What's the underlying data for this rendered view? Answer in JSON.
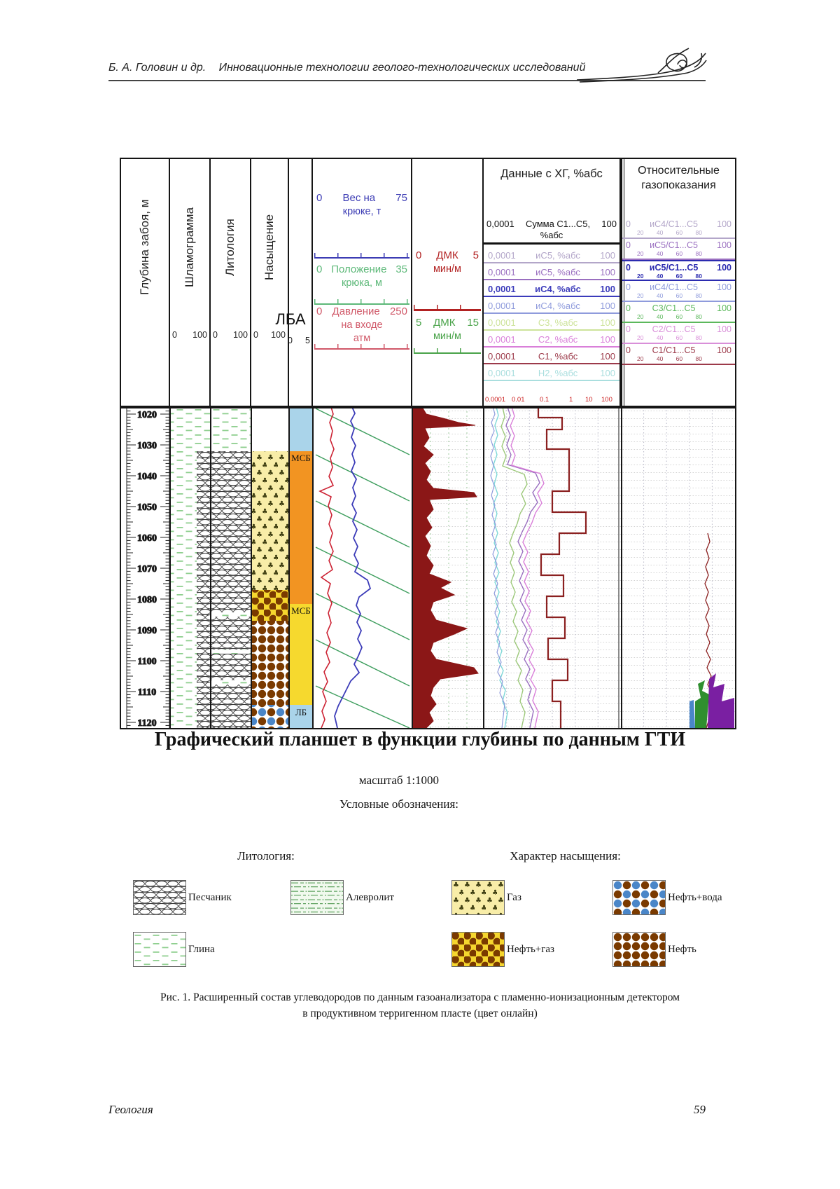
{
  "header": {
    "authors": "Б. А. Головин и др.",
    "title": "Инновационные технологии геолого-технологических исследований"
  },
  "colors": {
    "weight_blue": "#3c3cb4",
    "hookpos_green": "#5cb878",
    "pressure_pink": "#d05868",
    "dmk_red": "#b22222",
    "dmk_green": "#4aa34a",
    "lba_blue": "#aad4ea",
    "lba_orange": "#f29422",
    "lba_yellow": "#f6d92e",
    "purple_blob": "#7a1fa2",
    "green_blob": "#2f8f2f"
  },
  "log": {
    "tracks": {
      "depth": {
        "label": "Глубина забоя, м"
      },
      "shlam": {
        "label": "Шламограмма",
        "min": "0",
        "max": "100"
      },
      "lith": {
        "label": "Литология",
        "min": "0",
        "max": "100"
      },
      "satur": {
        "label": "Насыщение",
        "min": "0",
        "max": "100"
      },
      "lba": {
        "label": "ЛБА",
        "min": "0",
        "max": "5"
      }
    },
    "weight": {
      "rows": [
        {
          "min": "0",
          "label": "Вес на",
          "max": "75",
          "unit": "крюке, т",
          "color": "#3c3cb4"
        },
        {
          "min": "0",
          "label": "Положение",
          "max": "35",
          "unit": "крюка, м",
          "color": "#5cb878"
        },
        {
          "min": "0",
          "label": "Давление",
          "max": "250",
          "unit": "на входе",
          "unit2": "атм",
          "color": "#d05868"
        }
      ]
    },
    "dmk": {
      "rows": [
        {
          "min": "0",
          "label": "ДМК",
          "max": "5",
          "unit": "мин/м",
          "color": "#b22222"
        },
        {
          "min": "5",
          "label": "ДМК",
          "max": "15",
          "unit": "мин/м",
          "color": "#4aa34a"
        }
      ]
    },
    "hg": {
      "title": "Данные с ХГ, %абс",
      "sum_row": {
        "min": "0,0001",
        "label": "Сумма С1...С5,",
        "max": "100",
        "unit": "%абс"
      },
      "rows": [
        {
          "min": "0,0001",
          "label": "иС5, %абс",
          "max": "100",
          "color": "#b3a6c9"
        },
        {
          "min": "0,0001",
          "label": "иС5, %абс",
          "max": "100",
          "color": "#9a6fc0"
        },
        {
          "min": "0,0001",
          "label": "иС4, %абс",
          "max": "100",
          "color": "#3b3bbb"
        },
        {
          "min": "0,0001",
          "label": "иС4, %абс",
          "max": "100",
          "color": "#8f9bdc"
        },
        {
          "min": "0,0001",
          "label": "С3, %абс",
          "max": "100",
          "color": "#cde39a"
        },
        {
          "min": "0,0001",
          "label": "С2, %абс",
          "max": "100",
          "color": "#d97fd9"
        },
        {
          "min": "0,0001",
          "label": "С1, %абс",
          "max": "100",
          "color": "#9c3a4a"
        },
        {
          "min": "0,0001",
          "label": "Н2, %абс",
          "max": "100",
          "color": "#a9dede"
        }
      ],
      "scale_ticks": [
        "0.0001",
        "0.01",
        "0.1",
        "1",
        "10",
        "100"
      ]
    },
    "rel": {
      "title": "Относительные газопоказания",
      "rows": [
        {
          "min": "0",
          "label": "иС4/С1...С5",
          "max": "100",
          "ticks": "20 40 60 80",
          "color": "#b3a6c9"
        },
        {
          "min": "0",
          "label": "иС5/С1...С5",
          "max": "100",
          "ticks": "20 40 60 80",
          "color": "#9a6fc0"
        },
        {
          "min": "0",
          "label": "иС5/С1...С5",
          "max": "100",
          "ticks": "20 40 60 80",
          "color": "#2b2bb0"
        },
        {
          "min": "0",
          "label": "иС4/С1...С5",
          "max": "100",
          "ticks": "20 40 60 80",
          "color": "#8f9bdc"
        },
        {
          "min": "0",
          "label": "С3/С1...С5",
          "max": "100",
          "ticks": "20 40 60 80",
          "color": "#5cb85c"
        },
        {
          "min": "0",
          "label": "С2/С1...С5",
          "max": "100",
          "ticks": "20 40 60 80",
          "color": "#d98fd9"
        },
        {
          "min": "0",
          "label": "С1/С1...С5",
          "max": "100",
          "ticks": "20 40 60 80",
          "color": "#9c3a4a"
        }
      ]
    },
    "depth_labels": [
      "1020",
      "1030",
      "1040",
      "1050",
      "1060",
      "1070",
      "1080",
      "1090",
      "1100",
      "1110",
      "1120"
    ],
    "zone_labels": {
      "msb1": "МСБ",
      "msb2": "МСБ",
      "lb": "ЛБ"
    }
  },
  "figure": {
    "title": "Графический планшет в функции глубины по данным ГТИ",
    "scale_note": "масштаб 1:1000",
    "legend_heading": "Условные обозначения:"
  },
  "legend": {
    "lithology_heading": "Литология:",
    "saturation_heading": "Характер насыщения:",
    "sandstone": "Песчаник",
    "siltstone": "Алевролит",
    "clay": "Глина",
    "gas": "Газ",
    "oil_water": "Нефть+вода",
    "oil_gas": "Нефть+газ",
    "oil": "Нефть"
  },
  "caption": {
    "line1": "Рис. 1. Расширенный состав углеводородов по данным газоанализатора с пламенно-ионизационным детектором",
    "line2": "в продуктивном терригенном пласте (цвет онлайн)"
  },
  "footer": {
    "section": "Геология",
    "page_number": "59"
  }
}
